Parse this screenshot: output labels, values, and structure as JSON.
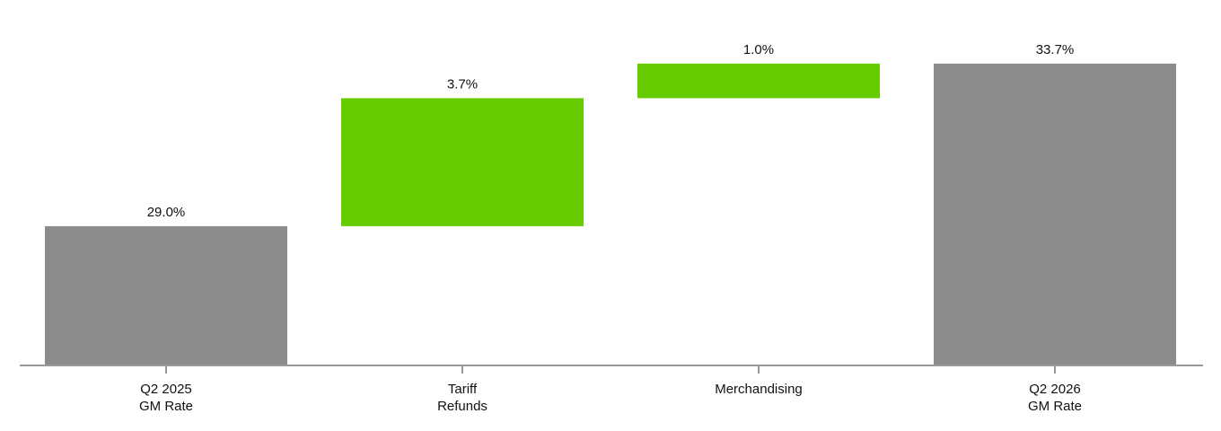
{
  "chart_data": {
    "type": "waterfall",
    "categories": [
      [
        "Q2 2025",
        "GM Rate"
      ],
      [
        "Tariff",
        "Refunds"
      ],
      [
        "Merchandising"
      ],
      [
        "Q2 2026",
        "GM Rate"
      ]
    ],
    "values": [
      29.0,
      3.7,
      1.0,
      33.7
    ],
    "value_labels": [
      "29.0%",
      "3.7%",
      "1.0%",
      "33.7%"
    ],
    "measures": [
      "absolute",
      "relative",
      "relative",
      "total"
    ],
    "colors": [
      "#8c8c8c",
      "#66cc00",
      "#66cc00",
      "#8c8c8c"
    ],
    "ylim": [
      25,
      34.5
    ]
  }
}
